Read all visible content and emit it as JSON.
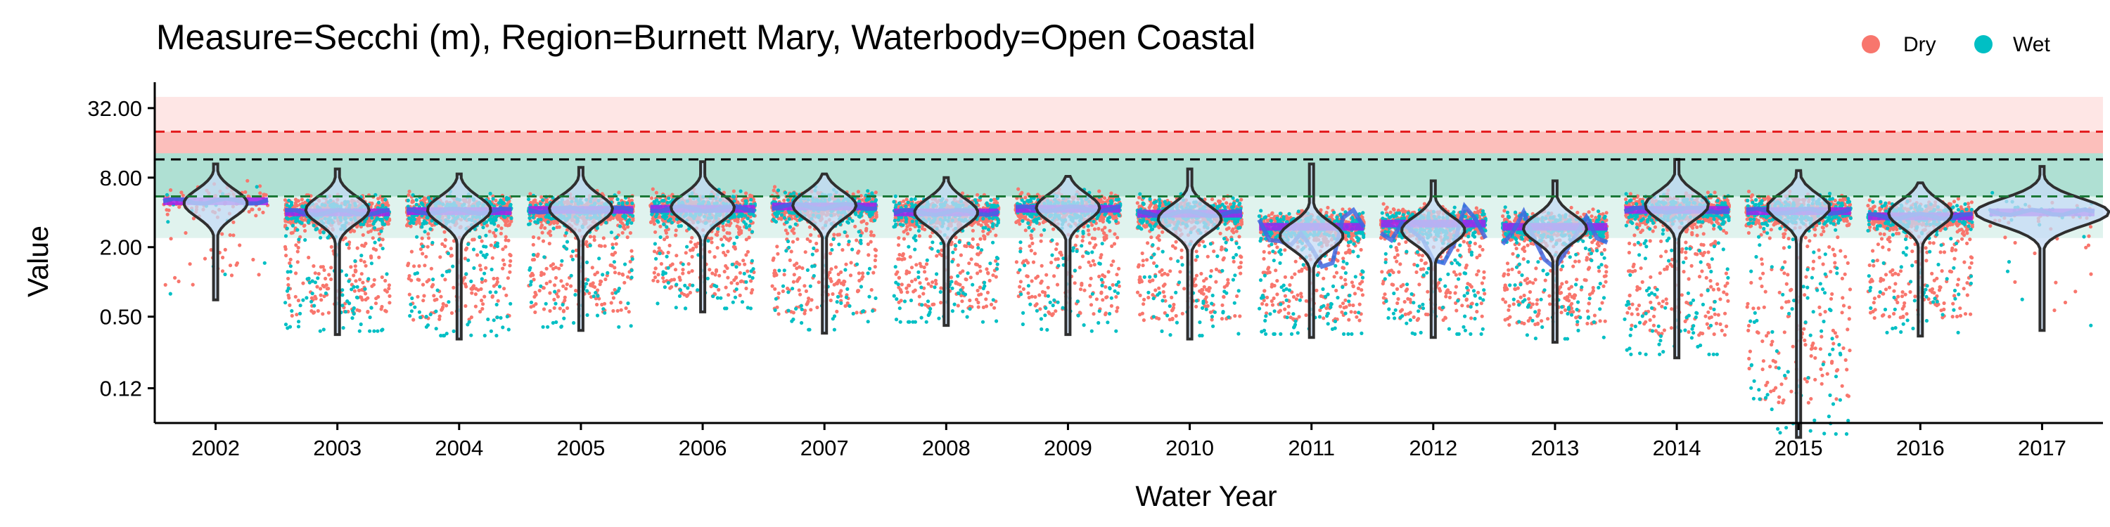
{
  "chart_data": {
    "type": "scatter",
    "title": "Measure=Secchi (m), Region=Burnett Mary, Waterbody=Open Coastal",
    "xlabel": "Water Year",
    "ylabel": "Value",
    "yscale": "log2",
    "ylim": [
      0.06,
      50
    ],
    "yticks": [
      {
        "value": 0.12,
        "label": "0.12"
      },
      {
        "value": 0.5,
        "label": "0.50"
      },
      {
        "value": 2,
        "label": "2.00"
      },
      {
        "value": 8,
        "label": "8.00"
      },
      {
        "value": 32,
        "label": "32.00"
      }
    ],
    "categories": [
      "2002",
      "2003",
      "2004",
      "2005",
      "2006",
      "2007",
      "2008",
      "2009",
      "2010",
      "2011",
      "2012",
      "2013",
      "2014",
      "2015",
      "2016",
      "2017"
    ],
    "legend": {
      "placement": "top-right",
      "entries": [
        {
          "label": "Dry",
          "color": "#F8766D"
        },
        {
          "label": "Wet",
          "color": "#00BFC4"
        }
      ]
    },
    "colors": {
      "dry": "#F8766D",
      "wet": "#00BFC4",
      "trend_line": "#4169E1",
      "median_bar": "#A020F0",
      "violin_fill": "#C6DBF5",
      "violin_stroke": "#2F2F2F"
    },
    "reference_bands": [
      {
        "from": 13,
        "to": 40,
        "color": "#F8766D",
        "opacity": 0.18
      },
      {
        "from": 13,
        "to": 20,
        "color": "#F8766D",
        "opacity": 0.35
      },
      {
        "from": 2.4,
        "to": 13,
        "color": "#00A077",
        "opacity": 0.12
      },
      {
        "from": 5.5,
        "to": 13,
        "color": "#00A077",
        "opacity": 0.22
      }
    ],
    "reference_lines": [
      {
        "value": 20,
        "color": "#E31A1C",
        "style": "dashed"
      },
      {
        "value": 11.5,
        "color": "#000000",
        "style": "dashed"
      },
      {
        "value": 5.5,
        "color": "#1B7837",
        "style": "dashed"
      }
    ],
    "series": [
      {
        "name": "2002",
        "median": 5.0,
        "min": 0.7,
        "max": 10.5,
        "dry_points": 130,
        "wet_points": 15,
        "violin_peak": 4.8
      },
      {
        "name": "2003",
        "median": 4.0,
        "min": 0.35,
        "max": 9.5,
        "dry_points": 700,
        "wet_points": 300,
        "violin_peak": 4.2
      },
      {
        "name": "2004",
        "median": 4.1,
        "min": 0.32,
        "max": 8.6,
        "dry_points": 700,
        "wet_points": 300,
        "violin_peak": 4.2
      },
      {
        "name": "2005",
        "median": 4.2,
        "min": 0.38,
        "max": 9.8,
        "dry_points": 700,
        "wet_points": 300,
        "violin_peak": 4.3
      },
      {
        "name": "2006",
        "median": 4.3,
        "min": 0.55,
        "max": 11.0,
        "dry_points": 700,
        "wet_points": 300,
        "violin_peak": 4.4
      },
      {
        "name": "2007",
        "median": 4.5,
        "min": 0.36,
        "max": 8.6,
        "dry_points": 700,
        "wet_points": 300,
        "violin_peak": 4.6
      },
      {
        "name": "2008",
        "median": 4.0,
        "min": 0.42,
        "max": 8.0,
        "dry_points": 700,
        "wet_points": 320,
        "violin_peak": 4.0
      },
      {
        "name": "2009",
        "median": 4.3,
        "min": 0.35,
        "max": 8.2,
        "dry_points": 700,
        "wet_points": 300,
        "violin_peak": 4.4
      },
      {
        "name": "2010",
        "median": 3.9,
        "min": 0.32,
        "max": 9.5,
        "dry_points": 700,
        "wet_points": 320,
        "violin_peak": 3.5
      },
      {
        "name": "2011",
        "median": 3.0,
        "min": 0.33,
        "max": 10.5,
        "dry_points": 700,
        "wet_points": 340,
        "violin_peak": 2.5
      },
      {
        "name": "2012",
        "median": 3.2,
        "min": 0.33,
        "max": 7.5,
        "dry_points": 700,
        "wet_points": 340,
        "violin_peak": 2.8
      },
      {
        "name": "2013",
        "median": 3.0,
        "min": 0.3,
        "max": 7.5,
        "dry_points": 700,
        "wet_points": 340,
        "violin_peak": 2.9
      },
      {
        "name": "2014",
        "median": 4.2,
        "min": 0.22,
        "max": 11.5,
        "dry_points": 700,
        "wet_points": 320,
        "violin_peak": 4.6
      },
      {
        "name": "2015",
        "median": 4.1,
        "min": 0.045,
        "max": 9.2,
        "dry_points": 700,
        "wet_points": 320,
        "violin_peak": 4.4
      },
      {
        "name": "2016",
        "median": 3.7,
        "min": 0.34,
        "max": 7.2,
        "dry_points": 600,
        "wet_points": 260,
        "violin_peak": 3.9
      },
      {
        "name": "2017",
        "median": 4.0,
        "min": 0.38,
        "max": 10.0,
        "dry_points": 40,
        "wet_points": 30,
        "violin_peak": 4.0
      }
    ]
  }
}
